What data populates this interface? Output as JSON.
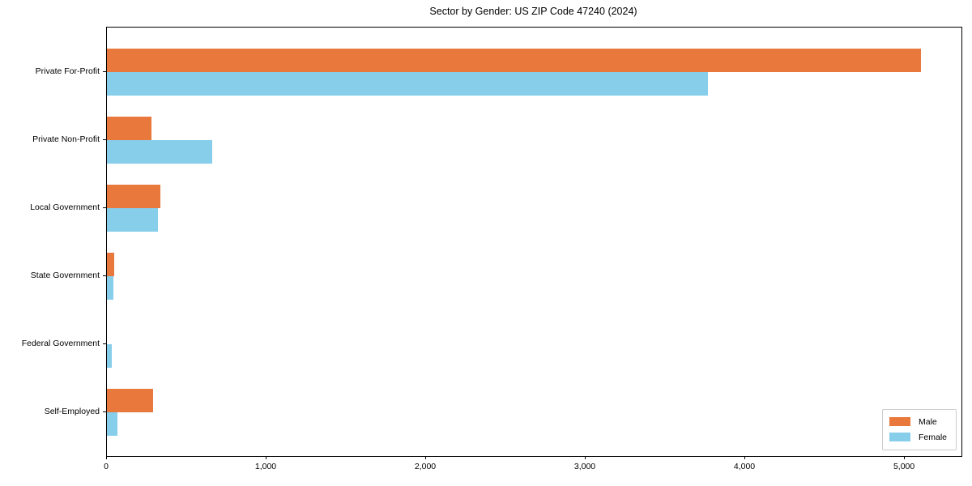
{
  "title": "Sector by Gender: US ZIP Code 47240 (2024)",
  "colors": {
    "male": "#e8783b",
    "female": "#87ceeb",
    "axis": "#000000",
    "legend_border": "#cccccc",
    "background": "#ffffff"
  },
  "legend": {
    "position": "lower right",
    "items": [
      {
        "label": "Male",
        "color": "#e8783b"
      },
      {
        "label": "Female",
        "color": "#87ceeb"
      }
    ]
  },
  "chart_data": {
    "type": "bar",
    "orientation": "horizontal",
    "title": "Sector by Gender: US ZIP Code 47240 (2024)",
    "categories": [
      "Private For-Profit",
      "Private Non-Profit",
      "Local Government",
      "State Government",
      "Federal Government",
      "Self-Employed"
    ],
    "series": [
      {
        "name": "Male",
        "color": "#e8783b",
        "values": [
          5100,
          280,
          335,
          45,
          0,
          290
        ]
      },
      {
        "name": "Female",
        "color": "#87ceeb",
        "values": [
          3765,
          660,
          320,
          40,
          30,
          65
        ]
      }
    ],
    "xlabel": "",
    "ylabel": "",
    "xlim": [
      0,
      5355
    ],
    "xticks": [
      0,
      1000,
      2000,
      3000,
      4000,
      5000
    ],
    "xtick_labels": [
      "0",
      "1,000",
      "2,000",
      "3,000",
      "4,000",
      "5,000"
    ],
    "grid": false,
    "legend_position": "lower right"
  }
}
